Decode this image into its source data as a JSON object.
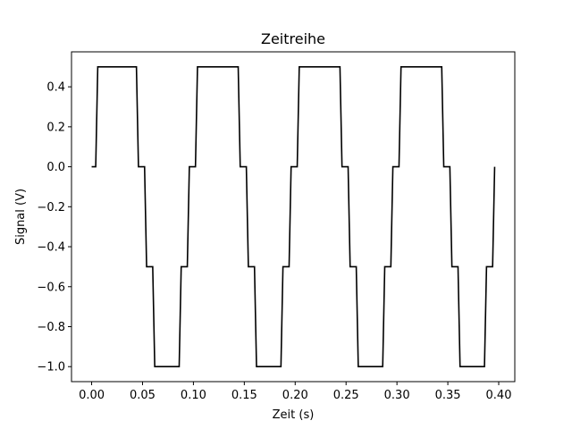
{
  "chart_data": {
    "type": "line",
    "title": "Zeitreihe",
    "xlabel": "Zeit  (s)",
    "ylabel": "Signal  (V)",
    "xlim": [
      -0.0198,
      0.4158
    ],
    "ylim": [
      -1.075,
      0.575
    ],
    "xticks": [
      0.0,
      0.05,
      0.1,
      0.15,
      0.2,
      0.25,
      0.3,
      0.35,
      0.4
    ],
    "xtick_labels": [
      "0.00",
      "0.05",
      "0.10",
      "0.15",
      "0.20",
      "0.25",
      "0.30",
      "0.35",
      "0.40"
    ],
    "yticks": [
      0.4,
      0.2,
      0.0,
      -0.2,
      -0.4,
      -0.6,
      -0.8,
      -1.0
    ],
    "ytick_labels": [
      "0.4",
      "0.2",
      "0.0",
      "−0.2",
      "−0.4",
      "−0.6",
      "−0.8",
      "−1.0"
    ],
    "grid": false,
    "series": [
      {
        "color": "#000000",
        "x": [
          0.0,
          0.002,
          0.004,
          0.006,
          0.008,
          0.01,
          0.012,
          0.014,
          0.016,
          0.018,
          0.02,
          0.022,
          0.024,
          0.026,
          0.028,
          0.03,
          0.032,
          0.034,
          0.036,
          0.038,
          0.04,
          0.042,
          0.044,
          0.046,
          0.048,
          0.05,
          0.052,
          0.054,
          0.056,
          0.058,
          0.06,
          0.062,
          0.064,
          0.066,
          0.068,
          0.07,
          0.072,
          0.074,
          0.076,
          0.078,
          0.08,
          0.082,
          0.084,
          0.086,
          0.088,
          0.09,
          0.092,
          0.094,
          0.096,
          0.098,
          0.1,
          0.102,
          0.104,
          0.106,
          0.108,
          0.11,
          0.112,
          0.114,
          0.116,
          0.118,
          0.12,
          0.122,
          0.124,
          0.126,
          0.128,
          0.13,
          0.132,
          0.134,
          0.136,
          0.138,
          0.14,
          0.142,
          0.144,
          0.146,
          0.148,
          0.15,
          0.152,
          0.154,
          0.156,
          0.158,
          0.16,
          0.162,
          0.164,
          0.166,
          0.168,
          0.17,
          0.172,
          0.174,
          0.176,
          0.178,
          0.18,
          0.182,
          0.184,
          0.186,
          0.188,
          0.19,
          0.192,
          0.194,
          0.196,
          0.198,
          0.2,
          0.202,
          0.204,
          0.206,
          0.208,
          0.21,
          0.212,
          0.214,
          0.216,
          0.218,
          0.22,
          0.222,
          0.224,
          0.226,
          0.228,
          0.23,
          0.232,
          0.234,
          0.236,
          0.238,
          0.24,
          0.242,
          0.244,
          0.246,
          0.248,
          0.25,
          0.252,
          0.254,
          0.256,
          0.258,
          0.26,
          0.262,
          0.264,
          0.266,
          0.268,
          0.27,
          0.272,
          0.274,
          0.276,
          0.278,
          0.28,
          0.282,
          0.284,
          0.286,
          0.288,
          0.29,
          0.292,
          0.294,
          0.296,
          0.298,
          0.3,
          0.302,
          0.304,
          0.306,
          0.308,
          0.31,
          0.312,
          0.314,
          0.316,
          0.318,
          0.32,
          0.322,
          0.324,
          0.326,
          0.328,
          0.33,
          0.332,
          0.334,
          0.336,
          0.338,
          0.34,
          0.342,
          0.344,
          0.346,
          0.348,
          0.35,
          0.352,
          0.354,
          0.356,
          0.358,
          0.36,
          0.362,
          0.364,
          0.366,
          0.368,
          0.37,
          0.372,
          0.374,
          0.376,
          0.378,
          0.38,
          0.382,
          0.384,
          0.386,
          0.388,
          0.39,
          0.392,
          0.394,
          0.396
        ],
        "y": [
          0.0,
          0.0,
          0.0,
          0.5,
          0.5,
          0.5,
          0.5,
          0.5,
          0.5,
          0.5,
          0.5,
          0.5,
          0.5,
          0.5,
          0.5,
          0.5,
          0.5,
          0.5,
          0.5,
          0.5,
          0.5,
          0.5,
          0.5,
          0.0,
          0.0,
          0.0,
          0.0,
          -0.5,
          -0.5,
          -0.5,
          -0.5,
          -1.0,
          -1.0,
          -1.0,
          -1.0,
          -1.0,
          -1.0,
          -1.0,
          -1.0,
          -1.0,
          -1.0,
          -1.0,
          -1.0,
          -1.0,
          -0.5,
          -0.5,
          -0.5,
          -0.5,
          0.0,
          0.0,
          0.0,
          0.0,
          0.5,
          0.5,
          0.5,
          0.5,
          0.5,
          0.5,
          0.5,
          0.5,
          0.5,
          0.5,
          0.5,
          0.5,
          0.5,
          0.5,
          0.5,
          0.5,
          0.5,
          0.5,
          0.5,
          0.5,
          0.5,
          0.0,
          0.0,
          0.0,
          0.0,
          -0.5,
          -0.5,
          -0.5,
          -0.5,
          -1.0,
          -1.0,
          -1.0,
          -1.0,
          -1.0,
          -1.0,
          -1.0,
          -1.0,
          -1.0,
          -1.0,
          -1.0,
          -1.0,
          -1.0,
          -0.5,
          -0.5,
          -0.5,
          -0.5,
          0.0,
          0.0,
          0.0,
          0.0,
          0.5,
          0.5,
          0.5,
          0.5,
          0.5,
          0.5,
          0.5,
          0.5,
          0.5,
          0.5,
          0.5,
          0.5,
          0.5,
          0.5,
          0.5,
          0.5,
          0.5,
          0.5,
          0.5,
          0.5,
          0.5,
          0.0,
          0.0,
          0.0,
          0.0,
          -0.5,
          -0.5,
          -0.5,
          -0.5,
          -1.0,
          -1.0,
          -1.0,
          -1.0,
          -1.0,
          -1.0,
          -1.0,
          -1.0,
          -1.0,
          -1.0,
          -1.0,
          -1.0,
          -1.0,
          -0.5,
          -0.5,
          -0.5,
          -0.5,
          0.0,
          0.0,
          0.0,
          0.0,
          0.5,
          0.5,
          0.5,
          0.5,
          0.5,
          0.5,
          0.5,
          0.5,
          0.5,
          0.5,
          0.5,
          0.5,
          0.5,
          0.5,
          0.5,
          0.5,
          0.5,
          0.5,
          0.5,
          0.5,
          0.5,
          0.0,
          0.0,
          0.0,
          0.0,
          -0.5,
          -0.5,
          -0.5,
          -0.5,
          -1.0,
          -1.0,
          -1.0,
          -1.0,
          -1.0,
          -1.0,
          -1.0,
          -1.0,
          -1.0,
          -1.0,
          -1.0,
          -1.0,
          -1.0,
          -0.5,
          -0.5,
          -0.5,
          -0.5,
          0.0
        ]
      }
    ]
  }
}
